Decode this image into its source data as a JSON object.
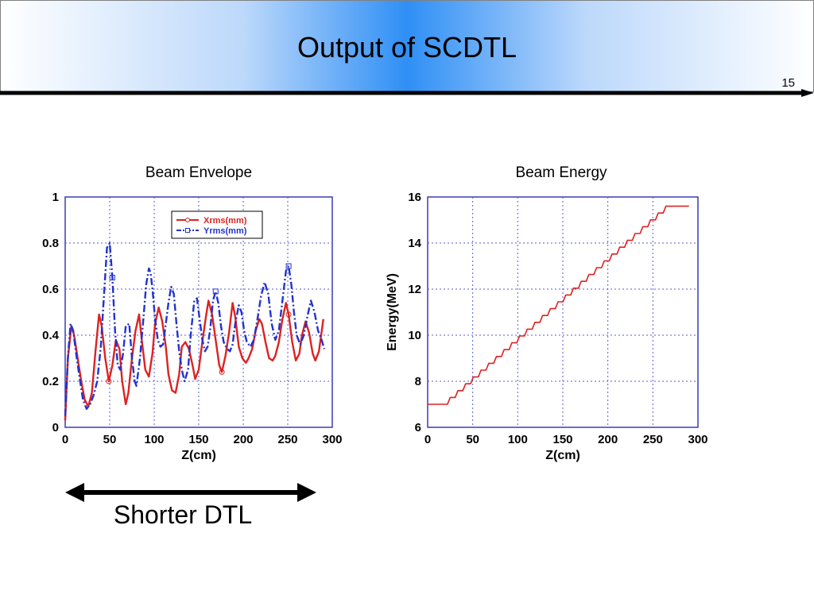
{
  "slide": {
    "title": "Output of SCDTL",
    "number": "15"
  },
  "annotation": {
    "label": "Shorter DTL"
  },
  "colors": {
    "header_accent": "#2f8ff5",
    "series_x": "#dd2222",
    "series_y": "#2233cc",
    "grid": "#5a5ad8",
    "plot_border": "#3b3bb5"
  },
  "chart_data": [
    {
      "type": "line",
      "title": "Beam Envelope",
      "xlabel": "Z(cm)",
      "ylabel": "",
      "xlim": [
        0,
        300
      ],
      "ylim": [
        0,
        1
      ],
      "xticks": [
        0,
        50,
        100,
        150,
        200,
        250,
        300
      ],
      "yticks": [
        0,
        0.2,
        0.4,
        0.6,
        0.8,
        1
      ],
      "ytick_labels": [
        "0",
        "0.2",
        "0.4",
        "0.6",
        "0.8",
        "1"
      ],
      "grid": true,
      "legend": "top-center",
      "series": [
        {
          "name": "Xrms(mm)",
          "color": "#dd2222",
          "style": "solid",
          "marker": "circle",
          "x": [
            0,
            3,
            7,
            10,
            14,
            18,
            22,
            26,
            30,
            34,
            38,
            41,
            45,
            49,
            53,
            57,
            61,
            64,
            68,
            71,
            75,
            79,
            83,
            86,
            90,
            94,
            98,
            101,
            105,
            109,
            113,
            116,
            120,
            124,
            128,
            131,
            135,
            139,
            143,
            146,
            150,
            154,
            158,
            161,
            165,
            169,
            173,
            176,
            180,
            184,
            188,
            191,
            195,
            199,
            203,
            206,
            210,
            214,
            218,
            221,
            225,
            229,
            233,
            236,
            240,
            244,
            248,
            251,
            255,
            259,
            263,
            266,
            270,
            274,
            278,
            281,
            285,
            290
          ],
          "y": [
            0.03,
            0.3,
            0.44,
            0.4,
            0.3,
            0.2,
            0.12,
            0.09,
            0.15,
            0.33,
            0.49,
            0.44,
            0.3,
            0.2,
            0.27,
            0.38,
            0.34,
            0.2,
            0.1,
            0.15,
            0.3,
            0.42,
            0.49,
            0.38,
            0.25,
            0.22,
            0.32,
            0.45,
            0.52,
            0.46,
            0.35,
            0.23,
            0.16,
            0.15,
            0.23,
            0.35,
            0.37,
            0.34,
            0.27,
            0.21,
            0.25,
            0.37,
            0.48,
            0.55,
            0.49,
            0.38,
            0.27,
            0.24,
            0.31,
            0.41,
            0.54,
            0.48,
            0.35,
            0.3,
            0.28,
            0.3,
            0.34,
            0.42,
            0.47,
            0.45,
            0.37,
            0.3,
            0.29,
            0.31,
            0.37,
            0.47,
            0.54,
            0.49,
            0.37,
            0.29,
            0.32,
            0.4,
            0.46,
            0.41,
            0.32,
            0.29,
            0.33,
            0.47
          ]
        },
        {
          "name": "Yrms(mm)",
          "color": "#2233cc",
          "style": "dash-dot",
          "marker": "square",
          "x": [
            0,
            3,
            6,
            9,
            12,
            16,
            20,
            24,
            28,
            32,
            36,
            40,
            44,
            47,
            50,
            53,
            56,
            59,
            62,
            65,
            68,
            72,
            75,
            78,
            80,
            84,
            88,
            91,
            94,
            96,
            98,
            101,
            104,
            107,
            110,
            113,
            116,
            119,
            122,
            125,
            128,
            131,
            134,
            138,
            141,
            145,
            148,
            151,
            154,
            157,
            160,
            163,
            166,
            169,
            172,
            175,
            178,
            182,
            185,
            188,
            191,
            195,
            198,
            201,
            204,
            208,
            212,
            216,
            220,
            224,
            228,
            232,
            236,
            240,
            244,
            248,
            251,
            254,
            257,
            260,
            264,
            268,
            272,
            276,
            280,
            284,
            288,
            291
          ],
          "y": [
            0.05,
            0.3,
            0.45,
            0.42,
            0.33,
            0.22,
            0.12,
            0.08,
            0.1,
            0.14,
            0.2,
            0.35,
            0.6,
            0.78,
            0.8,
            0.65,
            0.42,
            0.27,
            0.25,
            0.32,
            0.44,
            0.45,
            0.3,
            0.2,
            0.18,
            0.3,
            0.48,
            0.62,
            0.69,
            0.67,
            0.6,
            0.47,
            0.38,
            0.35,
            0.36,
            0.45,
            0.54,
            0.61,
            0.58,
            0.45,
            0.33,
            0.25,
            0.2,
            0.25,
            0.4,
            0.55,
            0.56,
            0.47,
            0.38,
            0.33,
            0.35,
            0.43,
            0.55,
            0.59,
            0.54,
            0.44,
            0.37,
            0.34,
            0.33,
            0.36,
            0.45,
            0.53,
            0.5,
            0.42,
            0.37,
            0.35,
            0.38,
            0.47,
            0.57,
            0.63,
            0.58,
            0.45,
            0.38,
            0.42,
            0.55,
            0.68,
            0.7,
            0.62,
            0.5,
            0.4,
            0.36,
            0.4,
            0.48,
            0.55,
            0.5,
            0.42,
            0.38,
            0.34
          ]
        }
      ]
    },
    {
      "type": "line",
      "title": "Beam Energy",
      "xlabel": "Z(cm)",
      "ylabel": "Energy(MeV)",
      "xlim": [
        0,
        300
      ],
      "ylim": [
        6,
        16
      ],
      "xticks": [
        0,
        50,
        100,
        150,
        200,
        250,
        300
      ],
      "yticks": [
        6,
        8,
        10,
        12,
        14,
        16
      ],
      "grid": true,
      "series": [
        {
          "color": "#dd2222",
          "style": "stepped",
          "x": [
            0,
            22,
            270,
            290
          ],
          "y": [
            7.0,
            7.0,
            15.6,
            15.6
          ]
        }
      ]
    }
  ]
}
